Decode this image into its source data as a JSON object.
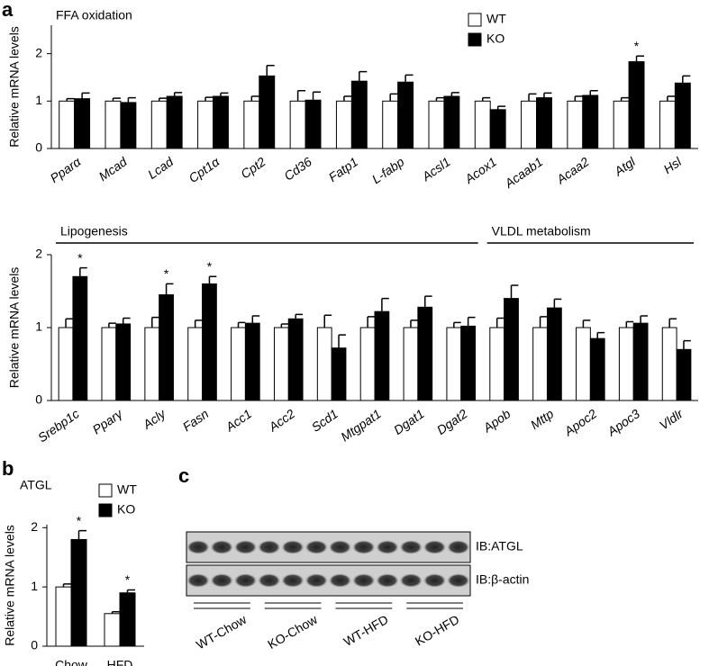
{
  "chart_data": [
    {
      "type": "bar",
      "panel": "a",
      "title": "FFA oxidation",
      "y_label": "Relative mRNA levels",
      "italic_categories": true,
      "categories": [
        "Pparα",
        "Mcad",
        "Lcad",
        "Cpt1α",
        "Cpt2",
        "Cd36",
        "Fatp1",
        "L-fabp",
        "Acsl1",
        "Acox1",
        "Acaab1",
        "Acaa2",
        "Atgl",
        "Hsl"
      ],
      "series": [
        {
          "name": "WT",
          "color": "#ffffff",
          "values": [
            1,
            1,
            1,
            1,
            1,
            1,
            1,
            1,
            1,
            1,
            1,
            1,
            1,
            1
          ],
          "errors": [
            0.05,
            0.06,
            0.06,
            0.08,
            0.1,
            0.22,
            0.1,
            0.15,
            0.07,
            0.07,
            0.15,
            0.1,
            0.07,
            0.1
          ]
        },
        {
          "name": "KO",
          "color": "#000000",
          "values": [
            1.05,
            0.97,
            1.1,
            1.1,
            1.53,
            1.02,
            1.42,
            1.4,
            1.1,
            0.82,
            1.07,
            1.12,
            1.83,
            1.38
          ],
          "errors": [
            0.12,
            0.1,
            0.08,
            0.07,
            0.22,
            0.17,
            0.2,
            0.15,
            0.08,
            0.07,
            0.1,
            0.1,
            0.12,
            0.15
          ],
          "significance": [
            null,
            null,
            null,
            null,
            null,
            null,
            null,
            null,
            null,
            null,
            null,
            null,
            "*",
            null
          ]
        }
      ],
      "ylim": [
        0,
        2.6
      ],
      "yticks": [
        0,
        1,
        2
      ]
    },
    {
      "type": "bar",
      "y_label": "Relative mRNA levels",
      "italic_categories": true,
      "groups": [
        "Lipogenesis",
        "VLDL metabolism"
      ],
      "categories": [
        "Srebp1c",
        "Pparγ",
        "Acly",
        "Fasn",
        "Acc1",
        "Acc2",
        "Scd1",
        "Mtgpat1",
        "Dgat1",
        "Dgat2",
        "Apob",
        "Mttp",
        "Apoc2",
        "Apoc3",
        "Vldlr"
      ],
      "series": [
        {
          "name": "WT",
          "color": "#ffffff",
          "values": [
            1,
            1,
            1,
            1,
            1,
            1,
            1,
            1,
            1,
            1,
            1,
            1,
            1,
            1,
            1
          ],
          "errors": [
            0.12,
            0.06,
            0.14,
            0.1,
            0.07,
            0.05,
            0.17,
            0.15,
            0.1,
            0.07,
            0.13,
            0.15,
            0.1,
            0.08,
            0.12
          ]
        },
        {
          "name": "KO",
          "color": "#000000",
          "values": [
            1.7,
            1.05,
            1.45,
            1.6,
            1.06,
            1.12,
            0.72,
            1.22,
            1.28,
            1.02,
            1.4,
            1.27,
            0.85,
            1.06,
            0.7
          ],
          "errors": [
            0.12,
            0.08,
            0.15,
            0.1,
            0.1,
            0.06,
            0.18,
            0.18,
            0.15,
            0.12,
            0.18,
            0.12,
            0.08,
            0.1,
            0.12
          ],
          "significance": [
            "*",
            null,
            "*",
            "*",
            null,
            null,
            null,
            null,
            null,
            null,
            null,
            null,
            null,
            null,
            null
          ]
        }
      ],
      "ylim": [
        0,
        2
      ],
      "yticks": [
        0,
        1,
        2
      ]
    },
    {
      "type": "bar",
      "panel": "b",
      "title": "ATGL",
      "y_label": "Relative mRNA levels",
      "italic_categories": false,
      "categories": [
        "Chow",
        "HFD"
      ],
      "series": [
        {
          "name": "WT",
          "color": "#ffffff",
          "values": [
            1,
            0.55
          ],
          "errors": [
            0.05,
            0.03
          ]
        },
        {
          "name": "KO",
          "color": "#000000",
          "values": [
            1.8,
            0.9
          ],
          "errors": [
            0.15,
            0.05
          ],
          "significance": [
            "*",
            "*"
          ]
        }
      ],
      "ylim": [
        0,
        2.05
      ],
      "yticks": [
        0,
        1,
        2
      ]
    }
  ],
  "blot": {
    "panel": "c",
    "rows": [
      "IB:ATGL",
      "IB:β-actin"
    ],
    "lanes": [
      "WT-Chow",
      "KO-Chow",
      "WT-HFD",
      "KO-HFD"
    ]
  }
}
